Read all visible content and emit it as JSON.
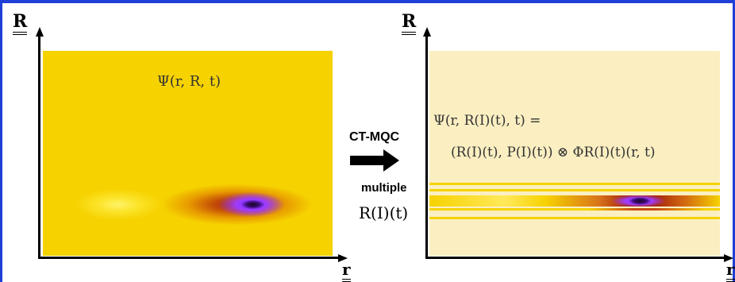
{
  "left_panel": {
    "y_axis_label": "R",
    "x_axis_label": "r",
    "wavefunction": "Ψ(r, R, t)"
  },
  "transition": {
    "method_label": "CT-MQC",
    "multiple_label": "multiple",
    "trajectories": "R(I)(t)"
  },
  "right_panel": {
    "y_axis_label": "R",
    "x_axis_label": "r",
    "equation_line1": "Ψ(r, R(I)(t), t) =",
    "equation_line2": "(R(I)(t), P(I)(t)) ⊗ ΦR(I)(t)(r, t)"
  },
  "colors": {
    "frame": "#1f3fd6",
    "left_background": "#f6d200",
    "right_background": "#fbefc2",
    "stripe": "#f6d200",
    "peak": "#7a2cff"
  }
}
